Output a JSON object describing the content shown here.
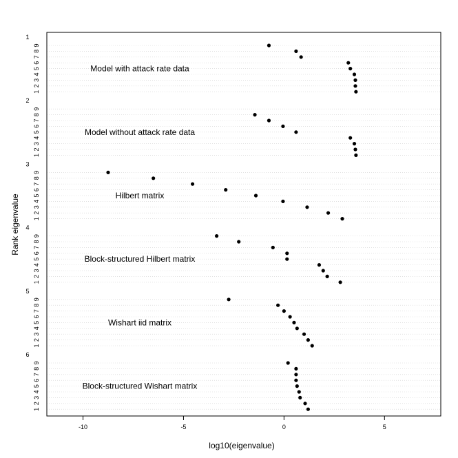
{
  "chart_data": {
    "type": "scatter",
    "title": "",
    "xlabel": "log10(eigenvalue)",
    "ylabel": "Rank eigenvalue",
    "xlim": [
      -11.8,
      7.8
    ],
    "xticks": [
      -10,
      -5,
      0,
      5
    ],
    "grid": "dotted horizontal lines at every rank",
    "panels": [
      {
        "number": "1",
        "number_color": "#000000",
        "name": "Model with attack rate data",
        "ranks": [
          "9",
          "8",
          "7",
          "6",
          "5",
          "4",
          "3",
          "2",
          "1"
        ],
        "values": [
          -0.75,
          0.6,
          0.85,
          3.2,
          3.3,
          3.5,
          3.55,
          3.55,
          3.58
        ]
      },
      {
        "number": "2",
        "number_color": "#DF536B",
        "name": "Model without attack rate data",
        "ranks": [
          "9",
          "8",
          "7",
          "6",
          "5",
          "4",
          "3",
          "2",
          "1"
        ],
        "values": [
          -1.45,
          -0.75,
          -0.05,
          0.6,
          3.3,
          3.5,
          3.55,
          3.58
        ],
        "ranks_plotted": [
          "8",
          "7",
          "6",
          "5",
          "4",
          "3",
          "2",
          "1"
        ]
      },
      {
        "number": "3",
        "number_color": "#61D04F",
        "name": "Hilbert matrix",
        "ranks": [
          "9",
          "8",
          "7",
          "6",
          "5",
          "4",
          "3",
          "2",
          "1"
        ],
        "values": [
          -8.75,
          -6.5,
          -4.55,
          -2.9,
          -1.4,
          -0.05,
          1.15,
          2.2,
          2.9
        ]
      },
      {
        "number": "4",
        "number_color": "#DF536B",
        "name": "Block-structured Hilbert matrix",
        "ranks": [
          "9",
          "8",
          "7",
          "6",
          "5",
          "4",
          "3",
          "2",
          "1"
        ],
        "values": [
          -3.35,
          -2.25,
          -0.55,
          0.15,
          0.15,
          1.75,
          1.95,
          2.15,
          2.8
        ]
      },
      {
        "number": "5",
        "number_color": "#F5C7D0",
        "name": "Wishart iid matrix",
        "ranks": [
          "9",
          "8",
          "7",
          "6",
          "5",
          "4",
          "3",
          "2",
          "1"
        ],
        "values": [
          -2.75,
          -0.3,
          0.0,
          0.3,
          0.5,
          0.65,
          1.0,
          1.2,
          1.4
        ]
      },
      {
        "number": "6",
        "number_color": "#DF49EE",
        "name": "Block-structured Wishart matrix",
        "ranks": [
          "9",
          "8",
          "7",
          "6",
          "5",
          "4",
          "3",
          "2",
          "1"
        ],
        "values": [
          0.2,
          0.6,
          0.6,
          0.6,
          0.65,
          0.75,
          0.8,
          1.05,
          1.2
        ]
      }
    ]
  }
}
